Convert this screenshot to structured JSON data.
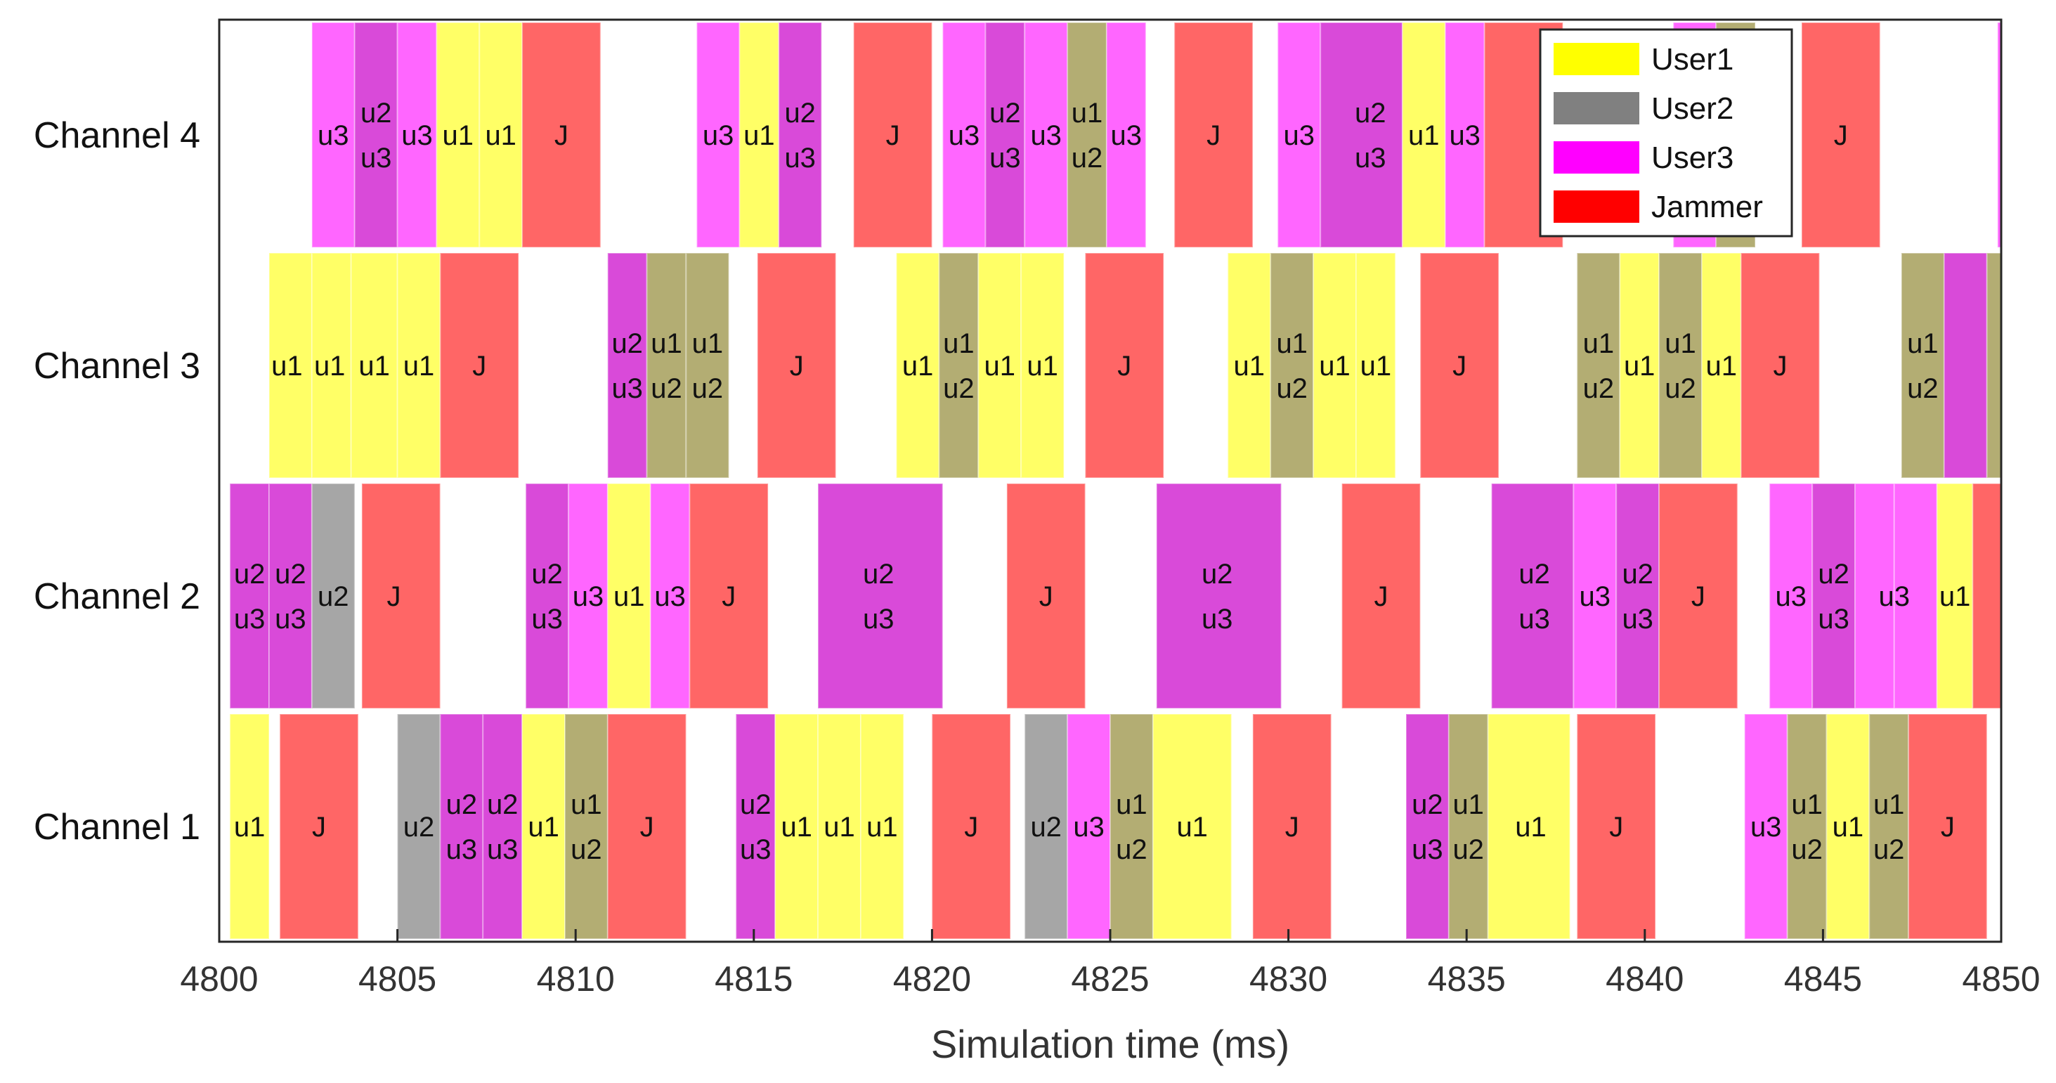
{
  "chart_data": {
    "type": "timeline",
    "xlabel": "Simulation time (ms)",
    "xlim": [
      4800,
      4850
    ],
    "xticks": [
      "4800",
      "4805",
      "4810",
      "4815",
      "4820",
      "4825",
      "4830",
      "4835",
      "4840",
      "4845",
      "4850"
    ],
    "legend": {
      "placement": "top-right",
      "entries": [
        {
          "name": "User1",
          "color": "#ffff00"
        },
        {
          "name": "User2",
          "color": "#808080"
        },
        {
          "name": "User3",
          "color": "#ff00ff"
        },
        {
          "name": "Jammer",
          "color": "#ff0000"
        }
      ]
    },
    "colors": {
      "u1": "#ffff66",
      "u2": "#a6a6a6",
      "u3": "#ff66ff",
      "J": "#ff6666",
      "u1u2": "#b3ad73",
      "u2u3": "#d94ad9"
    },
    "channels": [
      {
        "name": "Channel 4",
        "segments": [
          {
            "start": 4802.6,
            "end": 4803.8,
            "type": "u3"
          },
          {
            "start": 4803.8,
            "end": 4805.0,
            "type": "u2u3"
          },
          {
            "start": 4805.0,
            "end": 4806.1,
            "type": "u3"
          },
          {
            "start": 4806.1,
            "end": 4807.3,
            "type": "u1"
          },
          {
            "start": 4807.3,
            "end": 4808.5,
            "type": "u1"
          },
          {
            "start": 4808.5,
            "end": 4810.7,
            "type": "J"
          },
          {
            "start": 4813.4,
            "end": 4814.6,
            "type": "u3"
          },
          {
            "start": 4814.6,
            "end": 4815.7,
            "type": "u1"
          },
          {
            "start": 4815.7,
            "end": 4816.9,
            "type": "u2u3"
          },
          {
            "start": 4817.8,
            "end": 4820.0,
            "type": "J"
          },
          {
            "start": 4820.3,
            "end": 4821.5,
            "type": "u3"
          },
          {
            "start": 4821.5,
            "end": 4822.6,
            "type": "u2u3"
          },
          {
            "start": 4822.6,
            "end": 4823.8,
            "type": "u3"
          },
          {
            "start": 4823.8,
            "end": 4824.9,
            "type": "u1u2"
          },
          {
            "start": 4824.9,
            "end": 4826.0,
            "type": "u3"
          },
          {
            "start": 4826.8,
            "end": 4829.0,
            "type": "J"
          },
          {
            "start": 4829.7,
            "end": 4830.9,
            "type": "u3"
          },
          {
            "start": 4830.9,
            "end": 4833.2,
            "type": "u2u3"
          },
          {
            "start": 4833.2,
            "end": 4834.4,
            "type": "u1"
          },
          {
            "start": 4834.4,
            "end": 4835.5,
            "type": "u3"
          },
          {
            "start": 4835.5,
            "end": 4837.7,
            "type": "J"
          },
          {
            "start": 4840.8,
            "end": 4842.0,
            "type": "u3"
          },
          {
            "start": 4842.0,
            "end": 4843.1,
            "type": "u1u2"
          },
          {
            "start": 4844.4,
            "end": 4846.6,
            "type": "J"
          },
          {
            "start": 4849.9,
            "end": 4850.0,
            "type": "u3"
          }
        ],
        "labels": [
          {
            "t": 4803.2,
            "text": "u3"
          },
          {
            "t": 4804.4,
            "text": "u2\nu3"
          },
          {
            "t": 4805.55,
            "text": "u3"
          },
          {
            "t": 4806.7,
            "text": "u1"
          },
          {
            "t": 4807.9,
            "text": "u1"
          },
          {
            "t": 4809.6,
            "text": "J"
          },
          {
            "t": 4814.0,
            "text": "u3"
          },
          {
            "t": 4815.15,
            "text": "u1"
          },
          {
            "t": 4816.3,
            "text": "u2\nu3"
          },
          {
            "t": 4818.9,
            "text": "J"
          },
          {
            "t": 4820.9,
            "text": "u3"
          },
          {
            "t": 4822.05,
            "text": "u2\nu3"
          },
          {
            "t": 4823.2,
            "text": "u3"
          },
          {
            "t": 4824.35,
            "text": "u1\nu2"
          },
          {
            "t": 4825.45,
            "text": "u3"
          },
          {
            "t": 4827.9,
            "text": "J"
          },
          {
            "t": 4830.3,
            "text": "u3"
          },
          {
            "t": 4832.3,
            "text": "u2\nu3"
          },
          {
            "t": 4833.8,
            "text": "u1"
          },
          {
            "t": 4834.95,
            "text": "u3"
          },
          {
            "t": 4845.5,
            "text": "J"
          }
        ]
      },
      {
        "name": "Channel 3",
        "segments": [
          {
            "start": 4801.4,
            "end": 4802.6,
            "type": "u1"
          },
          {
            "start": 4802.6,
            "end": 4803.7,
            "type": "u1"
          },
          {
            "start": 4803.7,
            "end": 4805.0,
            "type": "u1"
          },
          {
            "start": 4805.0,
            "end": 4806.2,
            "type": "u1"
          },
          {
            "start": 4806.2,
            "end": 4808.4,
            "type": "J"
          },
          {
            "start": 4810.9,
            "end": 4812.0,
            "type": "u2u3"
          },
          {
            "start": 4812.0,
            "end": 4813.1,
            "type": "u1u2"
          },
          {
            "start": 4813.1,
            "end": 4814.3,
            "type": "u1u2"
          },
          {
            "start": 4815.1,
            "end": 4817.3,
            "type": "J"
          },
          {
            "start": 4819.0,
            "end": 4820.2,
            "type": "u1"
          },
          {
            "start": 4820.2,
            "end": 4821.3,
            "type": "u1u2"
          },
          {
            "start": 4821.3,
            "end": 4822.5,
            "type": "u1"
          },
          {
            "start": 4822.5,
            "end": 4823.7,
            "type": "u1"
          },
          {
            "start": 4824.3,
            "end": 4826.5,
            "type": "J"
          },
          {
            "start": 4828.3,
            "end": 4829.5,
            "type": "u1"
          },
          {
            "start": 4829.5,
            "end": 4830.7,
            "type": "u1u2"
          },
          {
            "start": 4830.7,
            "end": 4831.9,
            "type": "u1"
          },
          {
            "start": 4831.9,
            "end": 4833.0,
            "type": "u1"
          },
          {
            "start": 4833.7,
            "end": 4835.9,
            "type": "J"
          },
          {
            "start": 4838.1,
            "end": 4839.3,
            "type": "u1u2"
          },
          {
            "start": 4839.3,
            "end": 4840.4,
            "type": "u1"
          },
          {
            "start": 4840.4,
            "end": 4841.6,
            "type": "u1u2"
          },
          {
            "start": 4841.6,
            "end": 4842.7,
            "type": "u1"
          },
          {
            "start": 4842.7,
            "end": 4844.9,
            "type": "J"
          },
          {
            "start": 4847.2,
            "end": 4848.4,
            "type": "u1u2"
          },
          {
            "start": 4848.4,
            "end": 4849.6,
            "type": "u2u3"
          },
          {
            "start": 4849.6,
            "end": 4850.0,
            "type": "u1u2"
          }
        ],
        "labels": [
          {
            "t": 4801.9,
            "text": "u1"
          },
          {
            "t": 4803.1,
            "text": "u1"
          },
          {
            "t": 4804.35,
            "text": "u1"
          },
          {
            "t": 4805.6,
            "text": "u1"
          },
          {
            "t": 4807.3,
            "text": "J"
          },
          {
            "t": 4811.45,
            "text": "u2\nu3"
          },
          {
            "t": 4812.55,
            "text": "u1\nu2"
          },
          {
            "t": 4813.7,
            "text": "u1\nu2"
          },
          {
            "t": 4816.2,
            "text": "J"
          },
          {
            "t": 4819.6,
            "text": "u1"
          },
          {
            "t": 4820.75,
            "text": "u1\nu2"
          },
          {
            "t": 4821.9,
            "text": "u1"
          },
          {
            "t": 4823.1,
            "text": "u1"
          },
          {
            "t": 4825.4,
            "text": "J"
          },
          {
            "t": 4828.9,
            "text": "u1"
          },
          {
            "t": 4830.1,
            "text": "u1\nu2"
          },
          {
            "t": 4831.3,
            "text": "u1"
          },
          {
            "t": 4832.45,
            "text": "u1"
          },
          {
            "t": 4834.8,
            "text": "J"
          },
          {
            "t": 4838.7,
            "text": "u1\nu2"
          },
          {
            "t": 4839.85,
            "text": "u1"
          },
          {
            "t": 4841.0,
            "text": "u1\nu2"
          },
          {
            "t": 4842.15,
            "text": "u1"
          },
          {
            "t": 4843.8,
            "text": "J"
          },
          {
            "t": 4847.8,
            "text": "u1\nu2"
          }
        ]
      },
      {
        "name": "Channel 2",
        "segments": [
          {
            "start": 4800.3,
            "end": 4801.4,
            "type": "u2u3"
          },
          {
            "start": 4801.4,
            "end": 4802.6,
            "type": "u2u3"
          },
          {
            "start": 4802.6,
            "end": 4803.8,
            "type": "u2"
          },
          {
            "start": 4804.0,
            "end": 4806.2,
            "type": "J"
          },
          {
            "start": 4808.6,
            "end": 4809.8,
            "type": "u2u3"
          },
          {
            "start": 4809.8,
            "end": 4810.9,
            "type": "u3"
          },
          {
            "start": 4810.9,
            "end": 4812.1,
            "type": "u1"
          },
          {
            "start": 4812.1,
            "end": 4813.2,
            "type": "u3"
          },
          {
            "start": 4813.2,
            "end": 4815.4,
            "type": "J"
          },
          {
            "start": 4816.8,
            "end": 4820.3,
            "type": "u2u3"
          },
          {
            "start": 4822.1,
            "end": 4824.3,
            "type": "J"
          },
          {
            "start": 4826.3,
            "end": 4829.8,
            "type": "u2u3"
          },
          {
            "start": 4831.5,
            "end": 4833.7,
            "type": "J"
          },
          {
            "start": 4835.7,
            "end": 4838.0,
            "type": "u2u3"
          },
          {
            "start": 4838.0,
            "end": 4839.2,
            "type": "u3"
          },
          {
            "start": 4839.2,
            "end": 4840.4,
            "type": "u2u3"
          },
          {
            "start": 4840.4,
            "end": 4842.6,
            "type": "J"
          },
          {
            "start": 4843.5,
            "end": 4844.7,
            "type": "u3"
          },
          {
            "start": 4844.7,
            "end": 4845.9,
            "type": "u2u3"
          },
          {
            "start": 4845.9,
            "end": 4847.0,
            "type": "u3"
          },
          {
            "start": 4847.0,
            "end": 4848.2,
            "type": "u3"
          },
          {
            "start": 4848.2,
            "end": 4849.2,
            "type": "u1"
          },
          {
            "start": 4849.2,
            "end": 4850.0,
            "type": "J"
          }
        ],
        "labels": [
          {
            "t": 4800.85,
            "text": "u2\nu3"
          },
          {
            "t": 4802.0,
            "text": "u2\nu3"
          },
          {
            "t": 4803.2,
            "text": "u2"
          },
          {
            "t": 4804.9,
            "text": "J"
          },
          {
            "t": 4809.2,
            "text": "u2\nu3"
          },
          {
            "t": 4810.35,
            "text": "u3"
          },
          {
            "t": 4811.5,
            "text": "u1"
          },
          {
            "t": 4812.65,
            "text": "u3"
          },
          {
            "t": 4814.3,
            "text": "J"
          },
          {
            "t": 4818.5,
            "text": "u2\nu3"
          },
          {
            "t": 4823.2,
            "text": "J"
          },
          {
            "t": 4828.0,
            "text": "u2\nu3"
          },
          {
            "t": 4832.6,
            "text": "J"
          },
          {
            "t": 4836.9,
            "text": "u2\nu3"
          },
          {
            "t": 4838.6,
            "text": "u3"
          },
          {
            "t": 4839.8,
            "text": "u2\nu3"
          },
          {
            "t": 4841.5,
            "text": "J"
          },
          {
            "t": 4844.1,
            "text": "u3"
          },
          {
            "t": 4845.3,
            "text": "u2\nu3"
          },
          {
            "t": 4847.0,
            "text": "u3"
          },
          {
            "t": 4848.7,
            "text": "u1"
          }
        ]
      },
      {
        "name": "Channel 1",
        "segments": [
          {
            "start": 4800.3,
            "end": 4801.4,
            "type": "u1"
          },
          {
            "start": 4801.7,
            "end": 4803.9,
            "type": "J"
          },
          {
            "start": 4805.0,
            "end": 4806.2,
            "type": "u2"
          },
          {
            "start": 4806.2,
            "end": 4807.4,
            "type": "u2u3"
          },
          {
            "start": 4807.4,
            "end": 4808.5,
            "type": "u2u3"
          },
          {
            "start": 4808.5,
            "end": 4809.7,
            "type": "u1"
          },
          {
            "start": 4809.7,
            "end": 4810.9,
            "type": "u1u2"
          },
          {
            "start": 4810.9,
            "end": 4813.1,
            "type": "J"
          },
          {
            "start": 4814.5,
            "end": 4815.6,
            "type": "u2u3"
          },
          {
            "start": 4815.6,
            "end": 4816.8,
            "type": "u1"
          },
          {
            "start": 4816.8,
            "end": 4818.0,
            "type": "u1"
          },
          {
            "start": 4818.0,
            "end": 4819.2,
            "type": "u1"
          },
          {
            "start": 4820.0,
            "end": 4822.2,
            "type": "J"
          },
          {
            "start": 4822.6,
            "end": 4823.8,
            "type": "u2"
          },
          {
            "start": 4823.8,
            "end": 4825.0,
            "type": "u3"
          },
          {
            "start": 4825.0,
            "end": 4826.2,
            "type": "u1u2"
          },
          {
            "start": 4826.2,
            "end": 4828.4,
            "type": "u1"
          },
          {
            "start": 4829.0,
            "end": 4831.2,
            "type": "J"
          },
          {
            "start": 4833.3,
            "end": 4834.5,
            "type": "u2u3"
          },
          {
            "start": 4834.5,
            "end": 4835.6,
            "type": "u1u2"
          },
          {
            "start": 4835.6,
            "end": 4837.9,
            "type": "u1"
          },
          {
            "start": 4838.1,
            "end": 4840.3,
            "type": "J"
          },
          {
            "start": 4842.8,
            "end": 4844.0,
            "type": "u3"
          },
          {
            "start": 4844.0,
            "end": 4845.1,
            "type": "u1u2"
          },
          {
            "start": 4845.1,
            "end": 4846.3,
            "type": "u1"
          },
          {
            "start": 4846.3,
            "end": 4847.4,
            "type": "u1u2"
          },
          {
            "start": 4847.4,
            "end": 4849.6,
            "type": "J"
          }
        ],
        "labels": [
          {
            "t": 4800.85,
            "text": "u1"
          },
          {
            "t": 4802.8,
            "text": "J"
          },
          {
            "t": 4805.6,
            "text": "u2"
          },
          {
            "t": 4806.8,
            "text": "u2\nu3"
          },
          {
            "t": 4807.95,
            "text": "u2\nu3"
          },
          {
            "t": 4809.1,
            "text": "u1"
          },
          {
            "t": 4810.3,
            "text": "u1\nu2"
          },
          {
            "t": 4812.0,
            "text": "J"
          },
          {
            "t": 4815.05,
            "text": "u2\nu3"
          },
          {
            "t": 4816.2,
            "text": "u1"
          },
          {
            "t": 4817.4,
            "text": "u1"
          },
          {
            "t": 4818.6,
            "text": "u1"
          },
          {
            "t": 4821.1,
            "text": "J"
          },
          {
            "t": 4823.2,
            "text": "u2"
          },
          {
            "t": 4824.4,
            "text": "u3"
          },
          {
            "t": 4825.6,
            "text": "u1\nu2"
          },
          {
            "t": 4827.3,
            "text": "u1"
          },
          {
            "t": 4830.1,
            "text": "J"
          },
          {
            "t": 4833.9,
            "text": "u2\nu3"
          },
          {
            "t": 4835.05,
            "text": "u1\nu2"
          },
          {
            "t": 4836.8,
            "text": "u1"
          },
          {
            "t": 4839.2,
            "text": "J"
          },
          {
            "t": 4843.4,
            "text": "u3"
          },
          {
            "t": 4844.55,
            "text": "u1\nu2"
          },
          {
            "t": 4845.7,
            "text": "u1"
          },
          {
            "t": 4846.85,
            "text": "u1\nu2"
          },
          {
            "t": 4848.5,
            "text": "J"
          }
        ]
      }
    ]
  }
}
